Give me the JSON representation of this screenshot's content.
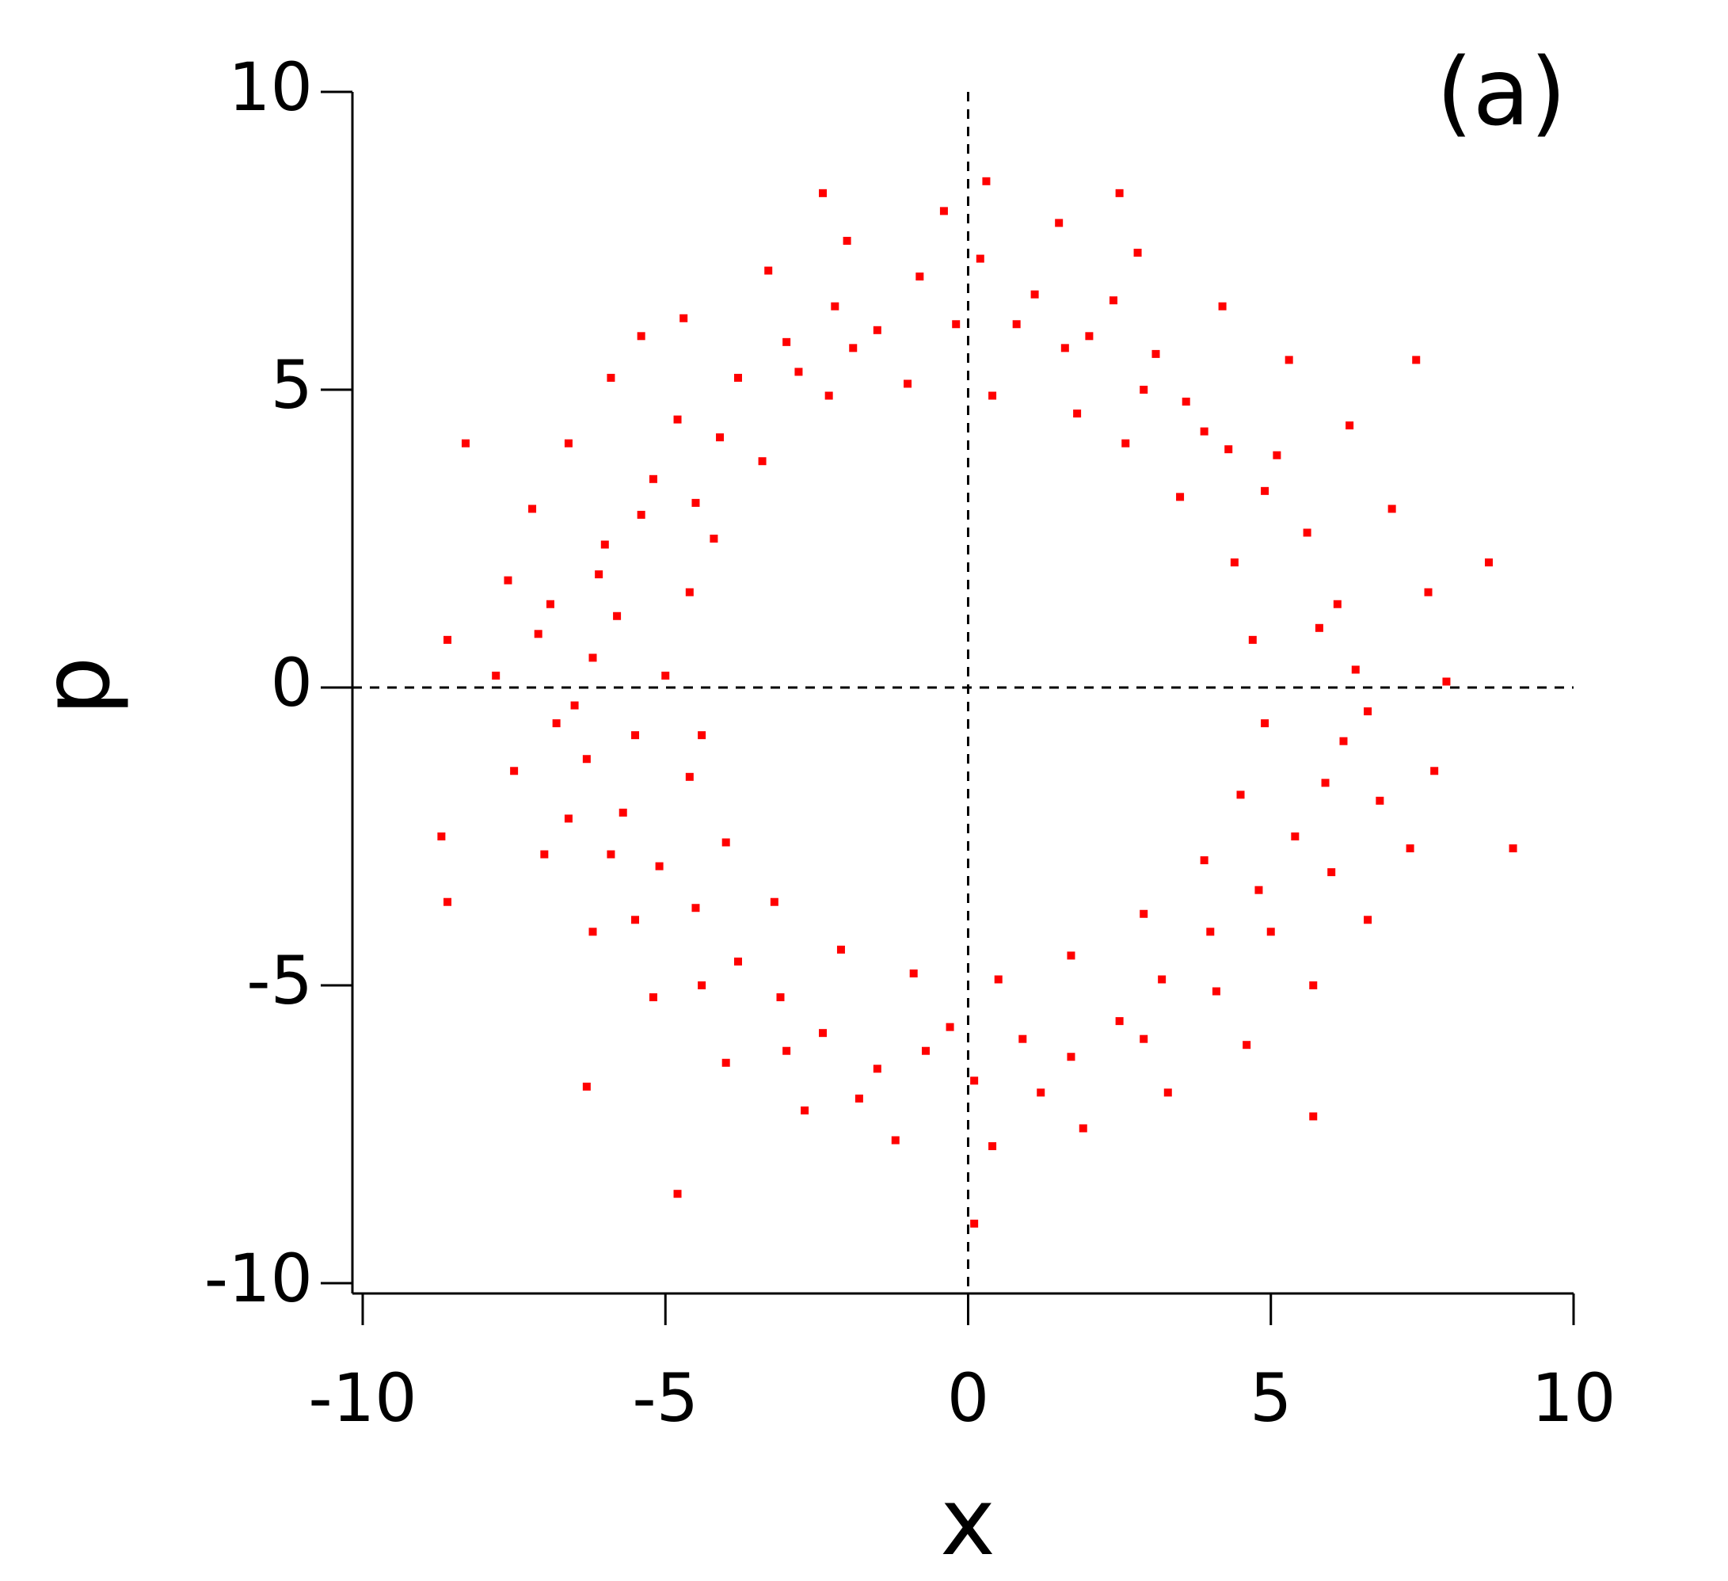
{
  "chart_data": {
    "type": "scatter",
    "panel_label": "(a)",
    "x_label": "x",
    "y_label": "p",
    "xlim": [
      -10,
      10
    ],
    "ylim": [
      -10,
      10
    ],
    "xticks": [
      -10,
      -5,
      0,
      5,
      10
    ],
    "yticks": [
      -10,
      -5,
      0,
      5,
      10
    ],
    "ref_lines": {
      "x": [
        0
      ],
      "y": [
        0
      ]
    },
    "series": [
      {
        "color": "#ff0000",
        "x": [
          -6.2,
          -5.8,
          -6.5,
          -5.5,
          -7.1,
          -6.0,
          -5.2,
          -4.5,
          -4.8,
          -3.8,
          -3.0,
          -2.2,
          -1.5,
          -0.8,
          0.2,
          0.8,
          1.6,
          2.4,
          2.9,
          3.6,
          4.3,
          4.9,
          5.6,
          6.1,
          6.4,
          6.2,
          5.9,
          5.4,
          4.8,
          4.0,
          3.2,
          2.5,
          1.7,
          0.9,
          0.1,
          -0.7,
          -1.5,
          -2.4,
          -3.1,
          -3.8,
          -4.5,
          -5.1,
          -5.7,
          -6.3,
          -7.6,
          -7.2,
          -6.6,
          -5.9,
          -4.7,
          -3.3,
          -2.0,
          -0.4,
          1.5,
          2.8,
          4.2,
          5.3,
          6.3,
          7.0,
          7.6,
          7.9,
          7.7,
          7.3,
          6.6,
          5.7,
          4.6,
          3.3,
          1.9,
          0.4,
          -1.2,
          -2.7,
          -4.0,
          -5.2,
          -6.2,
          -7.0,
          -7.5,
          -7.8,
          -5.0,
          -4.6,
          -4.2,
          -3.4,
          -2.3,
          -1.0,
          0.4,
          1.8,
          2.6,
          3.5,
          4.4,
          4.7,
          4.9,
          4.5,
          3.9,
          2.9,
          1.7,
          0.5,
          -0.9,
          -2.1,
          -3.2,
          -4.0,
          -4.6,
          -4.4,
          -6.8,
          -6.1,
          -5.4,
          -4.1,
          -2.8,
          -1.9,
          -0.2,
          1.1,
          2.0,
          3.1,
          3.9,
          5.1,
          5.8,
          6.6,
          6.8,
          6.0,
          5.0,
          4.1,
          2.9,
          1.2,
          -0.3,
          -1.8,
          -3.0,
          -4.4,
          -5.5,
          -6.6,
          -5.9,
          -6.9,
          -8.6,
          -8.3,
          -8.7,
          -8.6,
          -4.8,
          -6.3,
          0.3,
          0.1,
          5.7,
          8.6,
          9.0,
          7.4,
          -2.4,
          2.5,
          -5.4
        ],
        "y": [
          0.5,
          1.2,
          -0.3,
          -0.8,
          0.9,
          2.4,
          3.5,
          3.1,
          4.5,
          5.2,
          5.8,
          6.4,
          6.0,
          6.9,
          7.2,
          6.1,
          5.7,
          6.5,
          5.0,
          4.8,
          4.0,
          3.3,
          2.6,
          1.4,
          0.3,
          -0.9,
          -1.6,
          -2.5,
          -3.4,
          -4.1,
          -4.9,
          -5.6,
          -6.2,
          -5.9,
          -6.6,
          -6.1,
          -6.4,
          -5.8,
          -5.2,
          -4.6,
          -3.7,
          -3.0,
          -2.1,
          -1.2,
          1.8,
          3.0,
          4.1,
          5.2,
          6.2,
          7.0,
          7.5,
          8.0,
          7.8,
          7.3,
          6.4,
          5.5,
          4.4,
          3.0,
          1.6,
          0.1,
          -1.4,
          -2.7,
          -3.9,
          -5.0,
          -6.0,
          -6.8,
          -7.4,
          -7.7,
          -7.6,
          -7.1,
          -6.3,
          -5.2,
          -4.1,
          -2.8,
          -1.4,
          0.2,
          0.2,
          1.6,
          2.5,
          3.8,
          4.9,
          5.1,
          4.9,
          4.6,
          4.1,
          3.2,
          2.1,
          0.8,
          -0.6,
          -1.8,
          -2.9,
          -3.8,
          -4.5,
          -4.9,
          -4.8,
          -4.4,
          -3.6,
          -2.6,
          -1.5,
          -0.8,
          -0.6,
          1.9,
          2.9,
          4.2,
          5.3,
          5.7,
          6.1,
          6.6,
          5.9,
          5.6,
          4.3,
          3.9,
          1.0,
          -0.4,
          -1.9,
          -3.1,
          -4.1,
          -5.1,
          -5.9,
          -6.8,
          -5.7,
          -6.9,
          -6.1,
          -5.0,
          -3.9,
          -2.2,
          -2.8,
          1.4,
          0.8,
          4.1,
          -2.5,
          -3.6,
          -8.5,
          -6.7,
          8.5,
          -9.0,
          -7.2,
          2.1,
          -2.7,
          5.5,
          8.3,
          8.3,
          5.9
        ]
      }
    ]
  }
}
